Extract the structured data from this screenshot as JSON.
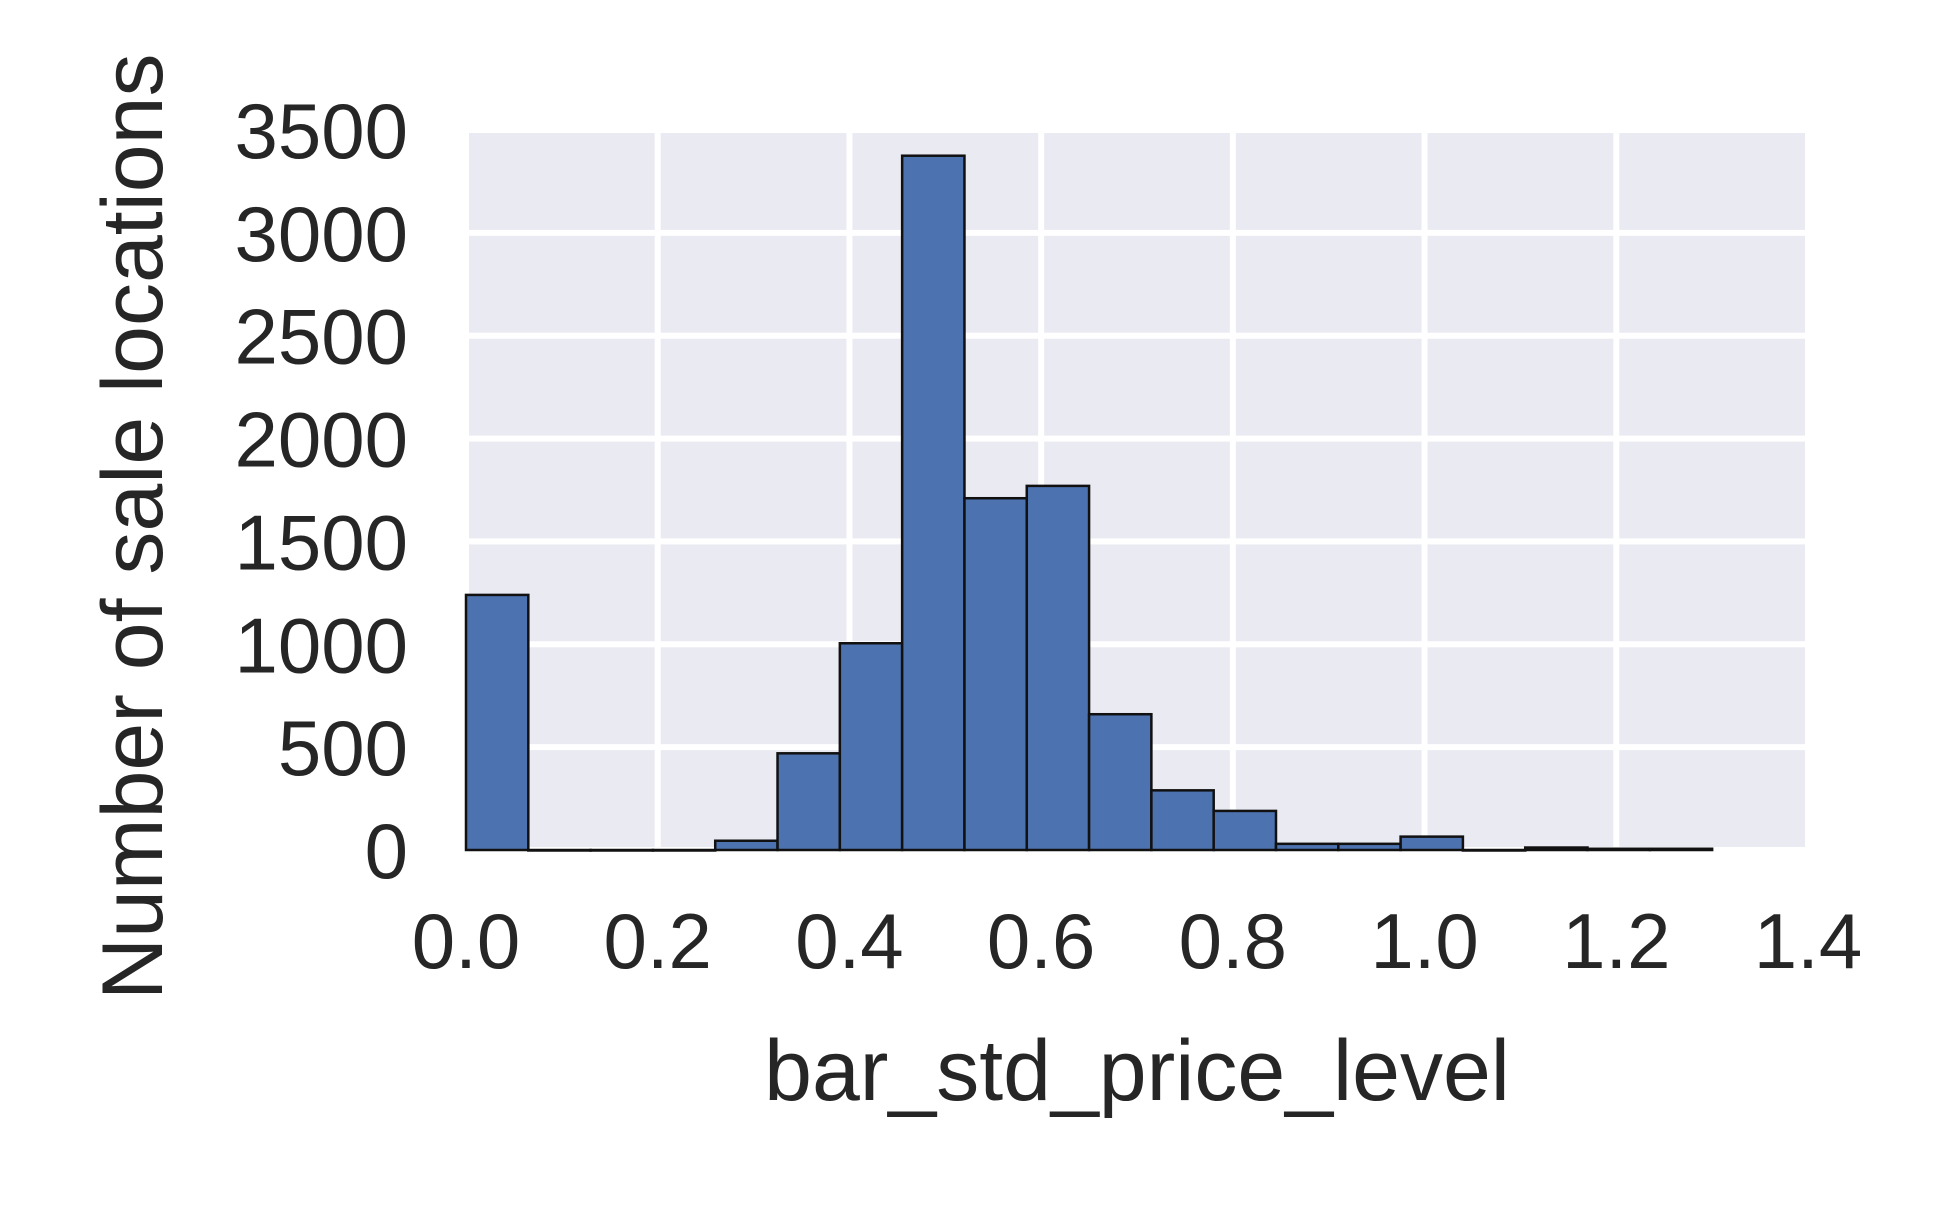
{
  "chart_data": {
    "type": "bar",
    "title": "",
    "xlabel": "bar_std_price_level",
    "ylabel": "Number of sale locations",
    "xlim": [
      0.0,
      1.4
    ],
    "ylim": [
      0,
      3500
    ],
    "xticks": [
      "0.0",
      "0.2",
      "0.4",
      "0.6",
      "0.8",
      "1.0",
      "1.2",
      "1.4"
    ],
    "xtick_values": [
      0.0,
      0.2,
      0.4,
      0.6,
      0.8,
      1.0,
      1.2,
      1.4
    ],
    "yticks": [
      "0",
      "500",
      "1000",
      "1500",
      "2000",
      "2500",
      "3000",
      "3500"
    ],
    "ytick_values": [
      0,
      500,
      1000,
      1500,
      2000,
      2500,
      3000,
      3500
    ],
    "grid": true,
    "background": "#eaeaf2",
    "bar_color": "#4c72b0",
    "bins": [
      {
        "x0": 0.0,
        "x1": 0.065,
        "value": 1240
      },
      {
        "x0": 0.065,
        "x1": 0.13,
        "value": 0
      },
      {
        "x0": 0.13,
        "x1": 0.195,
        "value": 0
      },
      {
        "x0": 0.195,
        "x1": 0.26,
        "value": 0
      },
      {
        "x0": 0.26,
        "x1": 0.325,
        "value": 45
      },
      {
        "x0": 0.325,
        "x1": 0.39,
        "value": 470
      },
      {
        "x0": 0.39,
        "x1": 0.455,
        "value": 1005
      },
      {
        "x0": 0.455,
        "x1": 0.52,
        "value": 3375
      },
      {
        "x0": 0.52,
        "x1": 0.585,
        "value": 1710
      },
      {
        "x0": 0.585,
        "x1": 0.65,
        "value": 1770
      },
      {
        "x0": 0.65,
        "x1": 0.715,
        "value": 660
      },
      {
        "x0": 0.715,
        "x1": 0.78,
        "value": 290
      },
      {
        "x0": 0.78,
        "x1": 0.845,
        "value": 190
      },
      {
        "x0": 0.845,
        "x1": 0.91,
        "value": 30
      },
      {
        "x0": 0.91,
        "x1": 0.975,
        "value": 30
      },
      {
        "x0": 0.975,
        "x1": 1.04,
        "value": 65
      },
      {
        "x0": 1.04,
        "x1": 1.105,
        "value": 0
      },
      {
        "x0": 1.105,
        "x1": 1.17,
        "value": 12
      },
      {
        "x0": 1.17,
        "x1": 1.235,
        "value": 6
      },
      {
        "x0": 1.235,
        "x1": 1.3,
        "value": 6
      }
    ]
  }
}
